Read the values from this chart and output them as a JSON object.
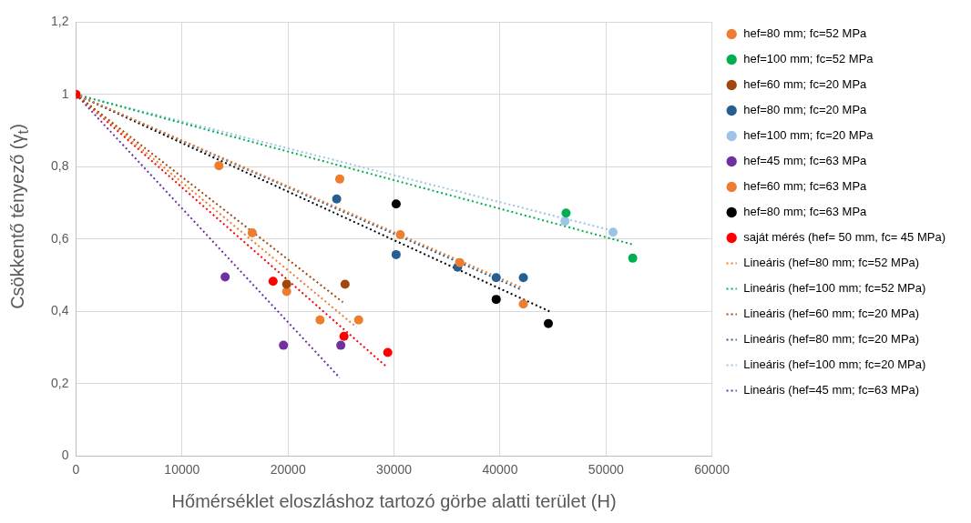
{
  "chart_data": {
    "type": "scatter",
    "xlabel": "Hőmérséklet eloszláshoz tartozó görbe alatti terület (H)",
    "ylabel": "Csökkentő tényező (γ$_{t}$)",
    "xlim": [
      0,
      60000
    ],
    "xticks": [
      0,
      10000,
      20000,
      30000,
      40000,
      50000,
      60000
    ],
    "ylim": [
      0,
      1.2
    ],
    "yticks": [
      0,
      {
        "value": 0.2,
        "label": "0,2"
      },
      {
        "value": 0.4,
        "label": "0,4"
      },
      {
        "value": 0.6,
        "label": "0,6"
      },
      {
        "value": 0.8,
        "label": "0,8"
      },
      1,
      {
        "value": 1.2,
        "label": "1,2"
      }
    ],
    "grid": true,
    "legend": "right",
    "marker": "circle",
    "series": [
      {
        "name": "hef=80 mm; fc=52 MPa",
        "color": "#ed7d31",
        "x": [
          13480,
          24880,
          30590,
          36200,
          42200
        ],
        "values": [
          0.803,
          0.766,
          0.612,
          0.535,
          0.42
        ]
      },
      {
        "name": "hef=100 mm; fc=52 MPa",
        "color": "#00b050",
        "x": [
          46230,
          52520
        ],
        "values": [
          0.672,
          0.547
        ]
      },
      {
        "name": "hef=60 mm; fc=20 MPa",
        "color": "#9e480e",
        "x": [
          19870,
          25380
        ],
        "values": [
          0.475,
          0.475
        ]
      },
      {
        "name": "hef=80 mm; fc=20 MPa",
        "color": "#255e91",
        "x": [
          24590,
          30200,
          36000,
          39640,
          42200
        ],
        "values": [
          0.711,
          0.557,
          0.522,
          0.493,
          0.493
        ]
      },
      {
        "name": "hef=100 mm; fc=20 MPa",
        "color": "#9dc3e6",
        "x": [
          46130,
          50660
        ],
        "values": [
          0.649,
          0.619
        ]
      },
      {
        "name": "hef=45 mm; fc=63 MPa",
        "color": "#7030a0",
        "x": [
          14070,
          19570,
          24980
        ],
        "values": [
          0.495,
          0.306,
          0.306
        ]
      },
      {
        "name": "hef=60 mm; fc=63 MPa",
        "color": "#ed7d31",
        "x": [
          16620,
          19870,
          23020,
          26660
        ],
        "values": [
          0.617,
          0.455,
          0.376,
          0.376
        ]
      },
      {
        "name": "hef=80 mm; fc=63 MPa",
        "color": "#000000",
        "x": [
          30200,
          39640,
          44560
        ],
        "values": [
          0.697,
          0.433,
          0.366
        ]
      },
      {
        "name": "saját mérés (hef= 50 mm, fc= 45 MPa)",
        "color": "#ff0000",
        "x": [
          0,
          18590,
          25280,
          29410
        ],
        "values": [
          1,
          0.483,
          0.331,
          0.286
        ]
      },
      {
        "name": "Lineáris (hef=80 mm; fc=52 MPa)",
        "type": "line",
        "marker": "none",
        "line_style": "dotted",
        "color": "#ed7d31",
        "x": [
          0,
          42100
        ],
        "values": [
          1,
          0.465
        ]
      },
      {
        "name": "Lineáris (hef=100 mm; fc=52 MPa)",
        "type": "line",
        "marker": "none",
        "line_style": "dotted",
        "color": "#00b050",
        "x": [
          0,
          52520
        ],
        "values": [
          1,
          0.585
        ]
      },
      {
        "name": "Lineáris (hef=60 mm; fc=20 MPa)",
        "type": "line",
        "marker": "none",
        "line_style": "dotted",
        "color": "#9e480e",
        "x": [
          0,
          25180
        ],
        "values": [
          1,
          0.425
        ]
      },
      {
        "name": "Lineáris (hef=80 mm; fc=20 MPa)",
        "type": "line",
        "marker": "none",
        "line_style": "dotted",
        "color": "#255e91",
        "x": [
          0,
          42000
        ],
        "values": [
          1,
          0.46
        ]
      },
      {
        "name": "Lineáris (hef=100 mm; fc=20 MPa)",
        "type": "line",
        "marker": "none",
        "line_style": "dotted",
        "color": "#9dc3e6",
        "x": [
          0,
          50760
        ],
        "values": [
          1,
          0.622
        ]
      },
      {
        "name": "Lineáris (hef=45 mm; fc=63 MPa)",
        "type": "line",
        "marker": "none",
        "line_style": "dotted",
        "color": "#7030a0",
        "x": [
          0,
          24880
        ],
        "values": [
          1,
          0.216
        ]
      },
      {
        "type": "line",
        "marker": "none",
        "line_style": "dotted",
        "color": "#ed7d31",
        "x": [
          0,
          26460
        ],
        "values": [
          1,
          0.356
        ]
      },
      {
        "type": "line",
        "marker": "none",
        "line_style": "dotted",
        "color": "#000000",
        "x": [
          0,
          44660
        ],
        "values": [
          1,
          0.4
        ]
      },
      {
        "type": "line",
        "marker": "none",
        "line_style": "dotted",
        "color": "#ff0000",
        "x": [
          0,
          29200
        ],
        "values": [
          1,
          0.249
        ]
      }
    ]
  }
}
